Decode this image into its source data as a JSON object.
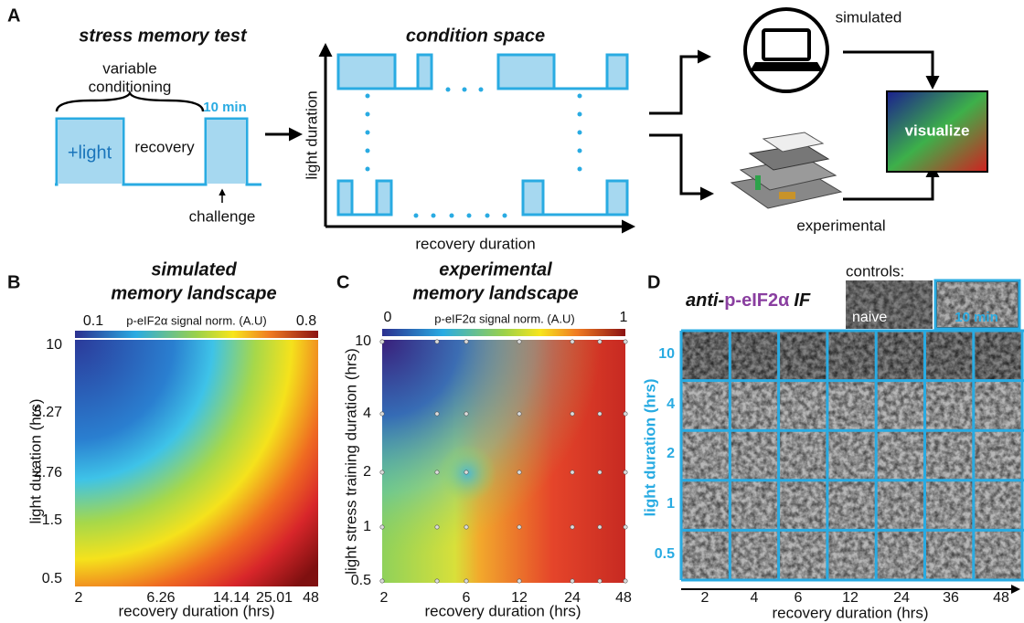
{
  "panel_a": {
    "label": "A",
    "title": "stress memory test",
    "brace_label": [
      "variable",
      "conditioning"
    ],
    "duration": "10 min",
    "pulse_label": "+light",
    "recovery": "recovery",
    "challenge": "challenge",
    "space_title": "condition space",
    "y_axis": "light duration",
    "x_axis": "recovery duration",
    "simulated": "simulated",
    "experimental": "experimental",
    "visualize": "visualize"
  },
  "panel_b": {
    "label": "B",
    "title": [
      "simulated",
      "memory landscape"
    ],
    "colorbar_label": "p-eIF2α signal norm. (A.U)",
    "colorbar_min": 0.1,
    "colorbar_max": 0.8,
    "y_label": "light duration (hrs)",
    "yticks": [
      10,
      5.27,
      2.76,
      1.5,
      0.5
    ],
    "x_label": "recovery duration (hrs)",
    "xticks": [
      2,
      6.26,
      14.14,
      25.01,
      48
    ]
  },
  "panel_c": {
    "label": "C",
    "title": [
      "experimental",
      "memory landscape"
    ],
    "colorbar_label": "p-eIF2α signal norm. (A.U)",
    "colorbar_min": 0,
    "colorbar_max": 1,
    "y_label": "light stress training duration (hrs)",
    "yticks": [
      10,
      4,
      2,
      1,
      0.5
    ],
    "x_label": "recovery duration (hrs)",
    "xticks": [
      2,
      6,
      12,
      24,
      48
    ]
  },
  "panel_d": {
    "label": "D",
    "title": [
      "anti-",
      "p-eIF2α",
      "IF"
    ],
    "controls": "controls:",
    "naive": "naive",
    "ten_min": "10 min",
    "y_label": "light duration (hrs)",
    "yticks": [
      10,
      4,
      2,
      1,
      0.5
    ],
    "x_label": "recovery duration (hrs)",
    "xticks": [
      2,
      4,
      6,
      12,
      24,
      36,
      48
    ]
  }
}
